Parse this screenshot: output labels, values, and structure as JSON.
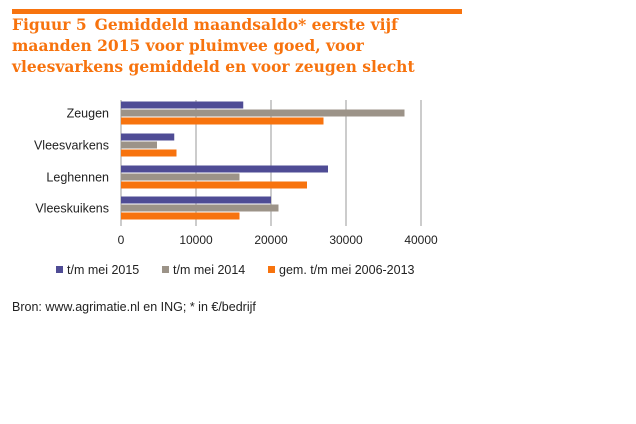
{
  "colors": {
    "accent": "#F7730E",
    "series_2015": "#4F4C95",
    "series_2014": "#9C9388",
    "series_avg": "#F7730E",
    "grid": "#9A9A9A"
  },
  "figure": {
    "number": "Figuur 5",
    "title": "Gemiddeld maandsaldo* eerste vijf maanden 2015 voor pluimvee goed, voor vleesvarkens gemiddeld en voor zeugen slecht"
  },
  "source": "Bron: www.agrimatie.nl en ING; * in €/bedrijf",
  "chart_data": {
    "type": "bar",
    "orientation": "horizontal",
    "title": "",
    "xlabel": "",
    "ylabel": "",
    "categories": [
      "Zeugen",
      "Vleesvarkens",
      "Leghennen",
      "Vleeskuikens"
    ],
    "series": [
      {
        "name": "t/m mei 2015",
        "values": [
          16300,
          7100,
          27600,
          20000
        ]
      },
      {
        "name": "t/m mei 2014",
        "values": [
          37800,
          4800,
          15800,
          21000
        ]
      },
      {
        "name": "gem. t/m mei 2006-2013",
        "values": [
          27000,
          7400,
          24800,
          15800
        ]
      }
    ],
    "xlim": [
      0,
      40000
    ],
    "xticks": [
      "0",
      "10000",
      "20000",
      "30000",
      "40000"
    ],
    "xtick_values": [
      0,
      10000,
      20000,
      30000,
      40000
    ],
    "grid": "vertical",
    "legend_position": "bottom"
  }
}
